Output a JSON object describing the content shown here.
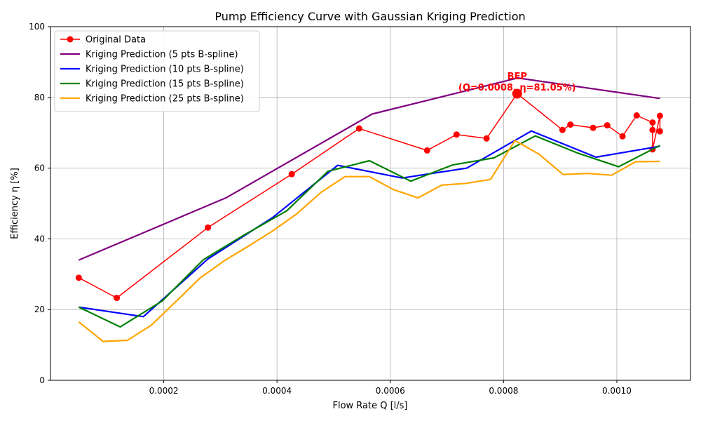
{
  "chart_data": {
    "type": "line",
    "title": "Pump Efficiency Curve with Gaussian Kriging Prediction",
    "xlabel": "Flow Rate Q [l/s]",
    "ylabel": "Efficiency η [%]",
    "xlim": [
      0.0,
      0.00113
    ],
    "ylim": [
      0,
      100
    ],
    "x_ticks": [
      0.0002,
      0.0004,
      0.0006,
      0.0008,
      0.001
    ],
    "x_tick_labels": [
      "0.0002",
      "0.0004",
      "0.0006",
      "0.0008",
      "0.0010"
    ],
    "y_ticks": [
      0,
      20,
      40,
      60,
      80,
      100
    ],
    "y_tick_labels": [
      "0",
      "20",
      "40",
      "60",
      "80",
      "100"
    ],
    "grid": true,
    "legend_position": "top-left",
    "series": [
      {
        "name": "Original Data",
        "color": "#ff0000",
        "markers": true,
        "x": [
          5e-05,
          0.000117,
          0.000278,
          0.000426,
          0.000545,
          0.000665,
          0.000717,
          0.00077,
          0.000824,
          0.000904,
          0.000918,
          0.000958,
          0.000983,
          0.00101,
          0.001035,
          0.001063,
          0.001063,
          0.001063,
          0.001076,
          0.001076
        ],
        "y": [
          29.0,
          23.3,
          43.2,
          58.3,
          71.2,
          65.0,
          69.5,
          68.4,
          81.05,
          70.8,
          72.3,
          71.4,
          72.1,
          69.0,
          74.9,
          72.9,
          70.8,
          65.3,
          74.8,
          70.4
        ]
      },
      {
        "name": "Kriging Prediction (5 pts B-spline)",
        "color": "#800080",
        "markers": false,
        "x": [
          5e-05,
          0.00031,
          0.000568,
          0.000825,
          0.001076
        ],
        "y": [
          34.0,
          51.6,
          75.3,
          85.5,
          79.7
        ]
      },
      {
        "name": "Kriging Prediction (10 pts B-spline)",
        "color": "#0000ff",
        "markers": false,
        "x": [
          5e-05,
          0.000164,
          0.000278,
          0.000392,
          0.000507,
          0.000621,
          0.000735,
          0.000849,
          0.000963,
          0.001076
        ],
        "y": [
          20.7,
          18.0,
          34.3,
          46.0,
          60.8,
          57.2,
          60.0,
          70.5,
          63.1,
          66.2
        ]
      },
      {
        "name": "Kriging Prediction (15 pts B-spline)",
        "color": "#008000",
        "markers": false,
        "x": [
          5e-05,
          0.000123,
          0.000197,
          0.00027,
          0.000343,
          0.000417,
          0.00049,
          0.000563,
          0.000636,
          0.00071,
          0.000783,
          0.000856,
          0.00093,
          0.001003,
          0.001076
        ],
        "y": [
          20.7,
          15.1,
          22.4,
          34.1,
          41.2,
          47.9,
          59.1,
          62.1,
          56.3,
          60.9,
          62.9,
          69.1,
          64.3,
          60.4,
          66.4
        ]
      },
      {
        "name": "Kriging Prediction (25 pts B-spline)",
        "color": "#ffa500",
        "markers": false,
        "x": [
          5e-05,
          9.3e-05,
          0.000136,
          0.000178,
          0.000221,
          0.000264,
          0.000307,
          0.000349,
          0.000392,
          0.000435,
          0.000478,
          0.00052,
          0.000563,
          0.000606,
          0.000649,
          0.000691,
          0.000734,
          0.000777,
          0.00082,
          0.000862,
          0.000905,
          0.000948,
          0.000991,
          0.001033,
          0.001076
        ],
        "y": [
          16.5,
          11.0,
          11.3,
          15.6,
          22.2,
          28.9,
          33.8,
          37.9,
          42.2,
          47.1,
          53.2,
          57.6,
          57.6,
          53.9,
          51.6,
          55.2,
          55.7,
          56.8,
          67.8,
          64.0,
          58.2,
          58.5,
          58.0,
          61.8,
          61.9
        ]
      }
    ],
    "bep": {
      "x": 0.000824,
      "y": 81.05,
      "label_line1": "BEP",
      "label_line2": "(Q=0.0008, η=81.05%)",
      "color": "#ff0000"
    }
  }
}
